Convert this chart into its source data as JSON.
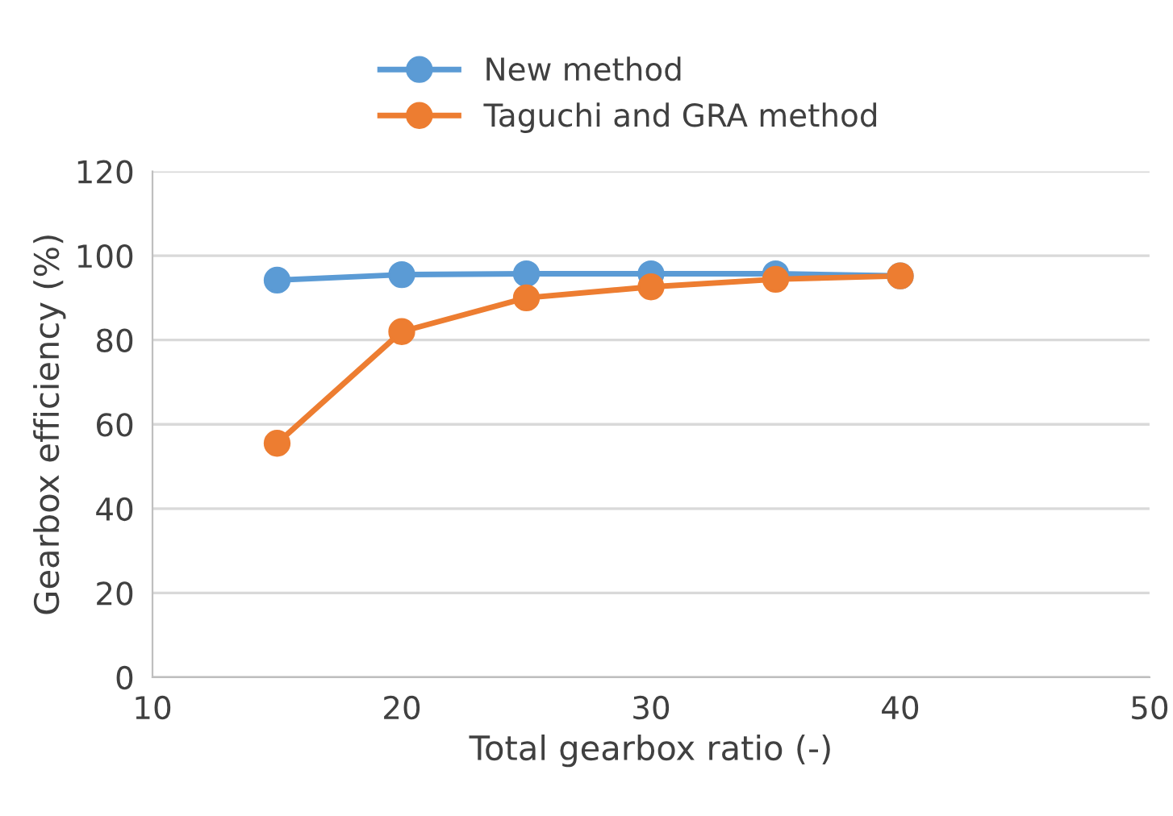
{
  "chart_data": {
    "type": "line",
    "xlabel": "Total gearbox ratio (-)",
    "ylabel": "Gearbox efficiency (%)",
    "x": [
      15,
      20,
      25,
      30,
      35,
      40
    ],
    "series": [
      {
        "name": "New method",
        "color": "#5b9bd5",
        "values": [
          94.2,
          95.5,
          95.7,
          95.7,
          95.7,
          95.2
        ]
      },
      {
        "name": "Taguchi and GRA method",
        "color": "#ed7d31",
        "values": [
          55.5,
          82.0,
          90.0,
          92.6,
          94.4,
          95.2
        ]
      }
    ],
    "xlim": [
      10,
      50
    ],
    "xticks": [
      10,
      20,
      30,
      40,
      50
    ],
    "ylim": [
      0,
      120
    ],
    "yticks": [
      0,
      20,
      40,
      60,
      80,
      100,
      120
    ],
    "grid": "y",
    "legend": "top",
    "marker": "circle",
    "line_style": "solid"
  }
}
